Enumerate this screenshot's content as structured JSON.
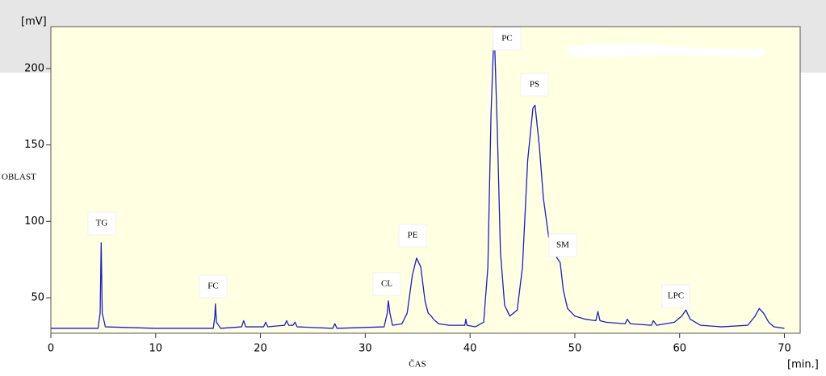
{
  "chart_data": {
    "type": "line",
    "y_unit": "[mV]",
    "y_label": "OBLAST",
    "x_label": "ČAS",
    "x_unit": "[min.]",
    "color": "#1c1cd0",
    "background": "#ffffe1",
    "xlim": [
      0,
      71.5
    ],
    "ylim": [
      26.8,
      227.4
    ],
    "xticks": [
      0,
      10,
      20,
      30,
      40,
      50,
      60,
      70
    ],
    "yticks": [
      50,
      100,
      150,
      200
    ],
    "grid": false,
    "annotations": [
      "TG",
      "FC",
      "CL",
      "PE",
      "PC",
      "PS",
      "SM",
      "LPC"
    ],
    "x": [
      0,
      4.5,
      4.7,
      4.8,
      4.9,
      5.2,
      10,
      15.5,
      15.65,
      15.7,
      15.8,
      16.2,
      18.2,
      18.4,
      18.6,
      20.3,
      20.5,
      20.7,
      22.3,
      22.5,
      22.7,
      23.1,
      23.3,
      23.5,
      26.9,
      27.1,
      27.3,
      31.8,
      32.1,
      32.2,
      32.35,
      32.6,
      33.5,
      34.0,
      34.5,
      34.9,
      35.3,
      35.7,
      36.0,
      36.3,
      36.5,
      37.0,
      38.0,
      39.5,
      39.6,
      39.7,
      40.5,
      41.3,
      41.7,
      42.0,
      42.3,
      42.6,
      42.9,
      43.3,
      43.8,
      44.5,
      45.0,
      45.5,
      46.0,
      46.2,
      46.6,
      47.0,
      47.5,
      48.0,
      48.3,
      48.6,
      48.9,
      49.3,
      50.0,
      51.0,
      52.0,
      52.2,
      52.4,
      53.0,
      54.8,
      55.0,
      55.3,
      57.3,
      57.5,
      57.8,
      59.5,
      60.2,
      60.6,
      61.0,
      62.0,
      64.0,
      66.5,
      67.2,
      67.6,
      68.0,
      68.5,
      69.0,
      70.0
    ],
    "values": [
      30,
      30,
      40,
      86,
      40,
      31,
      30,
      30,
      38,
      46,
      34,
      30,
      31,
      35,
      31,
      31,
      34,
      31,
      32,
      35,
      32,
      32,
      34,
      31,
      30,
      33,
      30,
      31,
      40,
      48,
      40,
      32,
      33,
      40,
      65,
      76,
      70,
      48,
      40,
      38,
      36,
      33,
      32,
      32,
      36,
      32,
      31,
      34,
      70,
      170,
      227,
      160,
      80,
      45,
      38,
      42,
      70,
      140,
      174,
      176,
      150,
      115,
      90,
      79,
      76,
      73,
      55,
      43,
      38,
      36,
      35,
      41,
      35,
      34,
      33,
      36,
      33,
      32,
      35,
      32,
      34,
      38,
      42,
      36,
      32,
      31,
      32,
      38,
      43,
      40,
      34,
      31,
      30
    ]
  }
}
